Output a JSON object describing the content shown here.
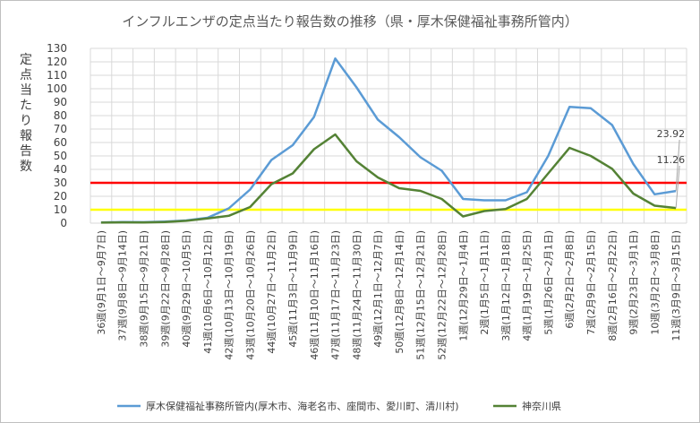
{
  "chart_data": {
    "type": "line",
    "title": "インフルエンザの定点当たり報告数の推移（県・厚木保健福祉事務所管内）",
    "ylabel": "定点当たり報告数",
    "xlabel": "",
    "ylim": [
      0,
      130
    ],
    "ytick_step": 10,
    "grid": true,
    "legend_position": "bottom",
    "categories": [
      "36週(9月1日～9月7日)",
      "37週(9月8日～9月14日)",
      "38週(9月15日～9月21日)",
      "39週(9月22日～9月28日)",
      "40週(9月29日～10月5日)",
      "41週(10月6日～10月12日)",
      "42週(10月13日～10月19日)",
      "43週(10月20日～10月26日)",
      "44週(10月27日～11月2日)",
      "45週(11月3日～11月9日)",
      "46週(11月10日～11月16日)",
      "47週(11月17日～11月23日)",
      "48週(11月24日～11月30日)",
      "49週(12月1日～12月7日)",
      "50週(12月8日～12月14日)",
      "51週(12月15日～12月21日)",
      "52週(12月22日～12月28日)",
      "1週(12月29日～1月4日)",
      "2週(1月5日～1月11日)",
      "3週(1月12日～1月18日)",
      "4週(1月19日～1月25日)",
      "5週(1月26日～2月1日)",
      "6週(2月2日～2月8日)",
      "7週(2月9日～2月15日)",
      "8週(2月16日～2月22日)",
      "9週(2月23日～3月1日)",
      "10週(3月2日～3月8日)",
      "11週(3月9日～3月15日)"
    ],
    "series": [
      {
        "name": "厚木保健福祉事務所管内(厚木市、海老名市、座間市、愛川町、清川村)",
        "color": "#5b9bd5",
        "values": [
          0.5,
          0.9,
          0.7,
          1.2,
          2.0,
          4.0,
          11.0,
          25.0,
          47.0,
          58.0,
          79.0,
          122.5,
          101.0,
          77.0,
          64.0,
          49.0,
          39.0,
          18.0,
          17.0,
          17.0,
          23.0,
          50.0,
          86.5,
          85.5,
          73.0,
          44.0,
          21.5,
          23.92
        ]
      },
      {
        "name": "神奈川県",
        "color": "#548235",
        "values": [
          0.4,
          0.6,
          0.5,
          0.9,
          1.7,
          3.5,
          5.5,
          12.0,
          29.0,
          37.0,
          55.0,
          66.0,
          46.0,
          34.0,
          26.0,
          24.0,
          18.0,
          5.0,
          9.0,
          10.5,
          18.0,
          37.0,
          56.0,
          50.0,
          40.5,
          22.0,
          13.0,
          11.26
        ]
      }
    ],
    "annotations": [
      "23.92",
      "11.26"
    ],
    "reference_lines": [
      {
        "value": 30,
        "color": "#ff0000"
      },
      {
        "value": 10,
        "color": "#ffff00"
      }
    ]
  }
}
